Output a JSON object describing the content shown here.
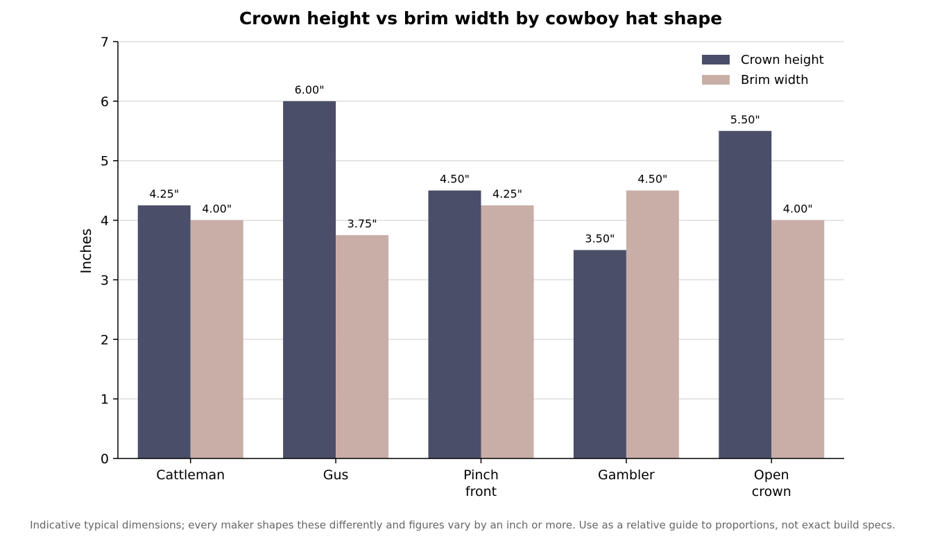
{
  "chart_data": {
    "type": "bar",
    "title": "Crown height vs brim width by cowboy hat shape",
    "xlabel": "",
    "ylabel": "Inches",
    "categories": [
      [
        "Cattleman"
      ],
      [
        "Gus"
      ],
      [
        "Pinch",
        "front"
      ],
      [
        "Gambler"
      ],
      [
        "Open",
        "crown"
      ]
    ],
    "series": [
      {
        "name": "Crown height",
        "color": "#4a4e69",
        "values": [
          4.25,
          6.0,
          4.5,
          3.5,
          5.5
        ],
        "labels": [
          "4.25\"",
          "6.00\"",
          "4.50\"",
          "3.50\"",
          "5.50\""
        ]
      },
      {
        "name": "Brim width",
        "color": "#c9ada7",
        "values": [
          4.0,
          3.75,
          4.25,
          4.5,
          4.0
        ],
        "labels": [
          "4.00\"",
          "3.75\"",
          "4.25\"",
          "4.50\"",
          "4.00\""
        ]
      }
    ],
    "ylim": [
      0,
      7
    ],
    "yticks": [
      0,
      1,
      2,
      3,
      4,
      5,
      6,
      7
    ],
    "grid": true,
    "legend_position": "top-right",
    "footnote": "Indicative typical dimensions; every maker shapes these differently and figures vary by an inch or more. Use as a relative guide to proportions, not exact build specs."
  }
}
